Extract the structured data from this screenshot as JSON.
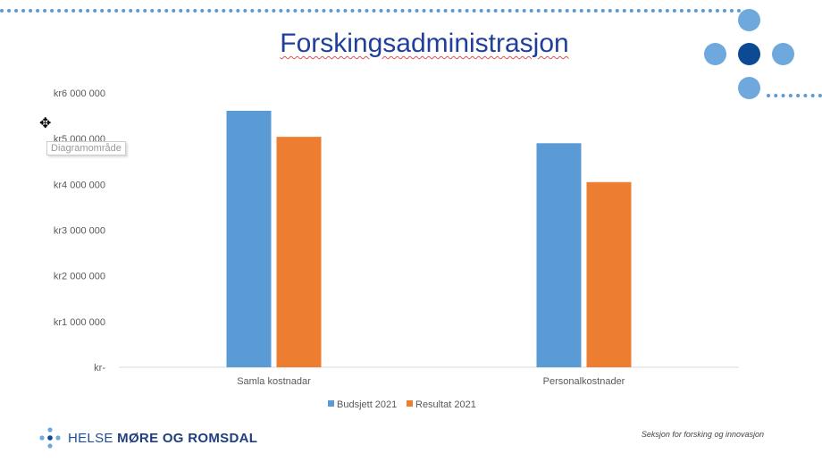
{
  "slide": {
    "title": "Forskingsadministrasjon",
    "footer": "Seksjon for forsking og innovasjon",
    "logo_text_light": "HELSE ",
    "logo_text_bold": "MØRE OG ROMSDAL",
    "tooltip": "Diagramområde"
  },
  "colors": {
    "budsjett": "#5b9bd5",
    "resultat": "#ed7d31",
    "accent": "#1f3f99"
  },
  "chart_data": {
    "type": "bar",
    "categories": [
      "Samla kostnadar",
      "Personalkostnader"
    ],
    "series": [
      {
        "name": "Budsjett 2021",
        "values": [
          5610000,
          4900000
        ],
        "color": "#5b9bd5"
      },
      {
        "name": "Resultat 2021",
        "values": [
          5040000,
          4050000
        ],
        "color": "#ed7d31"
      }
    ],
    "ylim": [
      0,
      6000000
    ],
    "yticks": [
      0,
      1000000,
      2000000,
      3000000,
      4000000,
      5000000,
      6000000
    ],
    "ytick_labels": [
      "kr-",
      "kr1 000 000",
      "kr2 000 000",
      "kr3 000 000",
      "kr4 000 000",
      "kr5 000 000",
      "kr6 000 000"
    ],
    "grid": false,
    "legend": "bottom"
  }
}
